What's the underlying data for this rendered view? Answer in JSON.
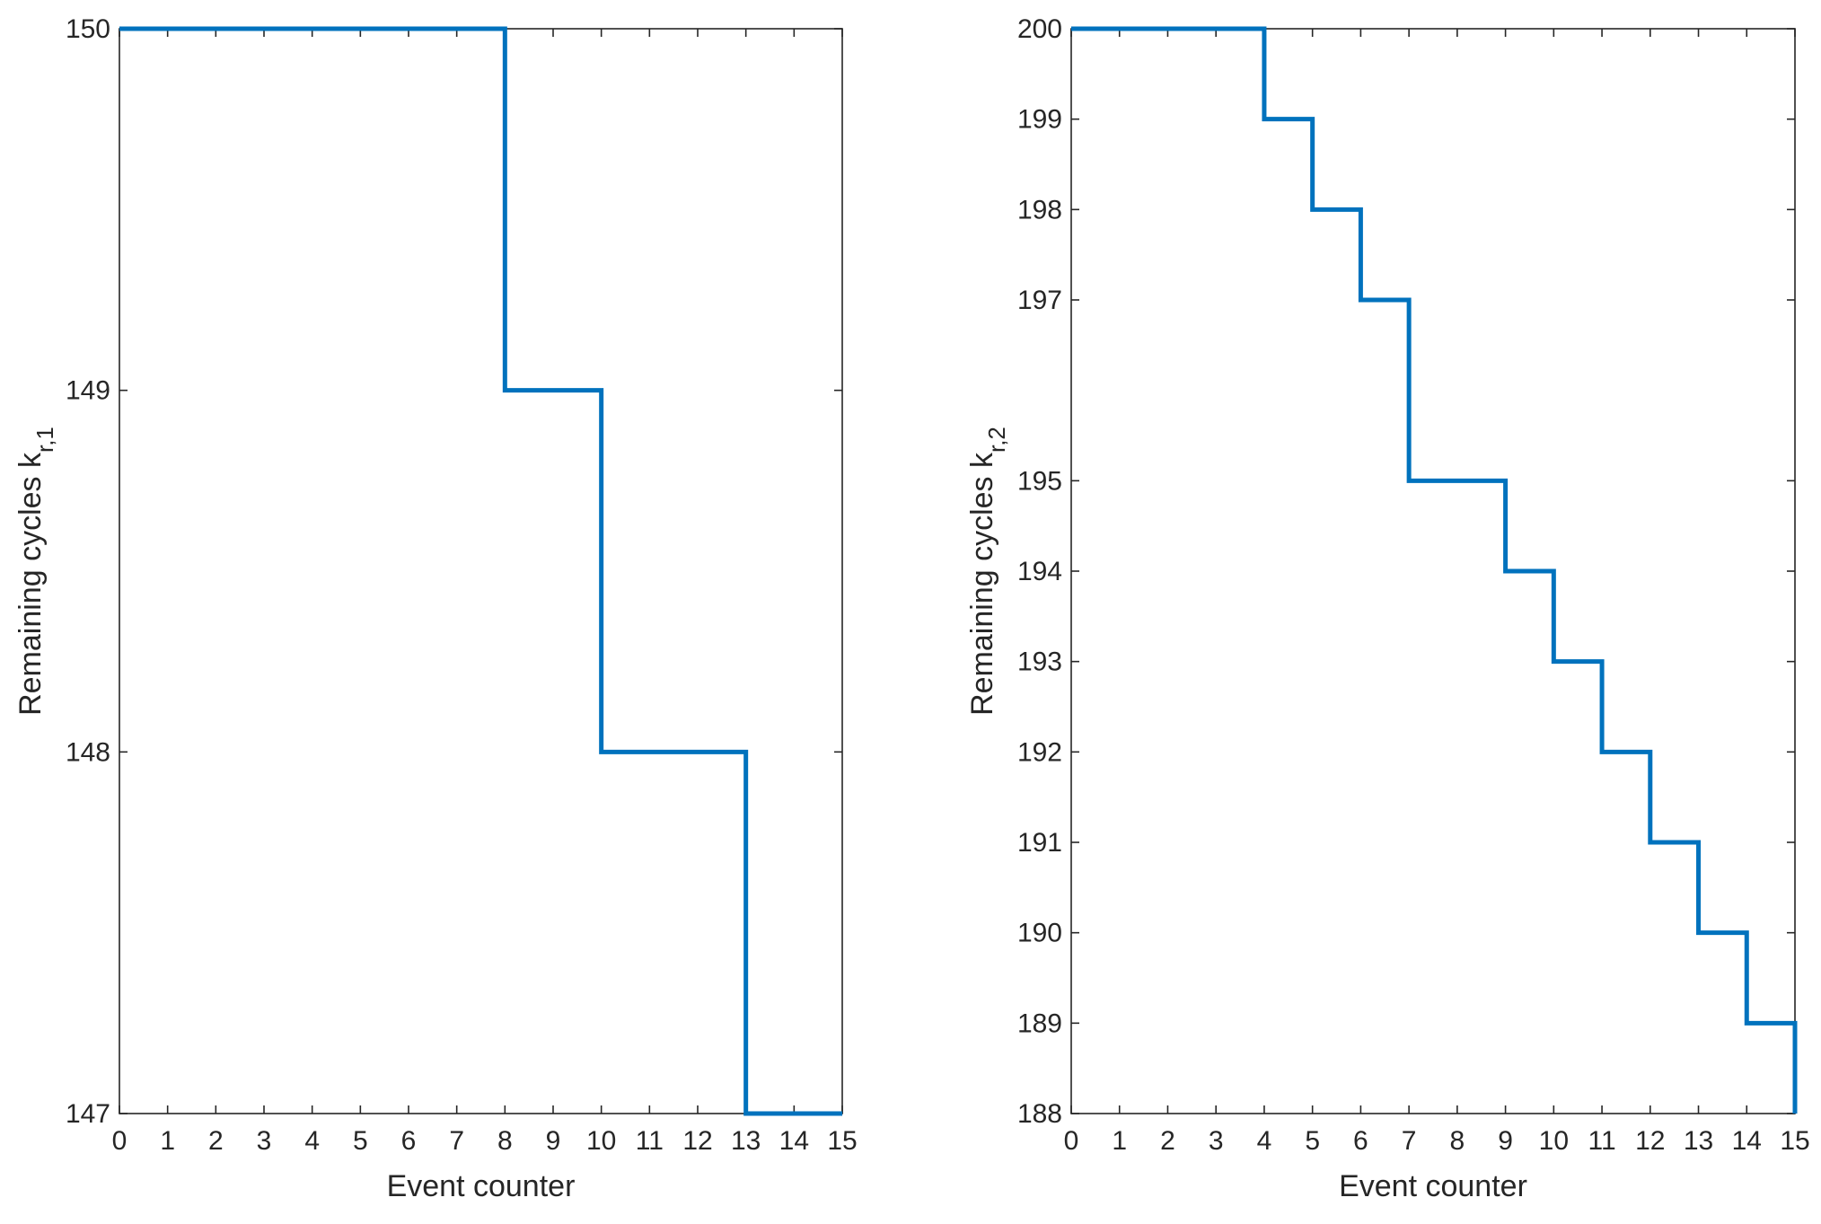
{
  "chart_data": [
    {
      "type": "line",
      "step": "post",
      "title": "",
      "xlabel": "Event counter",
      "ylabel": "Remaining cycles k",
      "ylabel_subscript": "r,1",
      "xlim": [
        0,
        15
      ],
      "ylim": [
        147,
        150
      ],
      "xticks": [
        0,
        1,
        2,
        3,
        4,
        5,
        6,
        7,
        8,
        9,
        10,
        11,
        12,
        13,
        14,
        15
      ],
      "yticks": [
        147,
        148,
        149,
        150
      ],
      "grid": false,
      "line_color": "#0072BD",
      "series": [
        {
          "x": [
            0,
            1,
            2,
            3,
            4,
            5,
            6,
            7,
            8,
            9,
            10,
            11,
            12,
            13,
            14,
            15
          ],
          "y": [
            150,
            150,
            150,
            150,
            150,
            150,
            150,
            150,
            149,
            149,
            148,
            148,
            148,
            147,
            147,
            147
          ]
        }
      ]
    },
    {
      "type": "line",
      "step": "post",
      "title": "",
      "xlabel": "Event counter",
      "ylabel": "Remaining cycles k",
      "ylabel_subscript": "r,2",
      "xlim": [
        0,
        15
      ],
      "ylim": [
        188,
        200
      ],
      "xticks": [
        0,
        1,
        2,
        3,
        4,
        5,
        6,
        7,
        8,
        9,
        10,
        11,
        12,
        13,
        14,
        15
      ],
      "yticks": [
        188,
        189,
        190,
        191,
        192,
        193,
        194,
        195,
        197,
        198,
        199,
        200
      ],
      "grid": false,
      "line_color": "#0072BD",
      "series": [
        {
          "x": [
            0,
            1,
            2,
            3,
            4,
            5,
            6,
            7,
            8,
            9,
            10,
            11,
            12,
            13,
            14,
            15
          ],
          "y": [
            200,
            200,
            200,
            200,
            199,
            198,
            197,
            195,
            195,
            194,
            193,
            192,
            191,
            190,
            189,
            188
          ]
        }
      ]
    }
  ]
}
